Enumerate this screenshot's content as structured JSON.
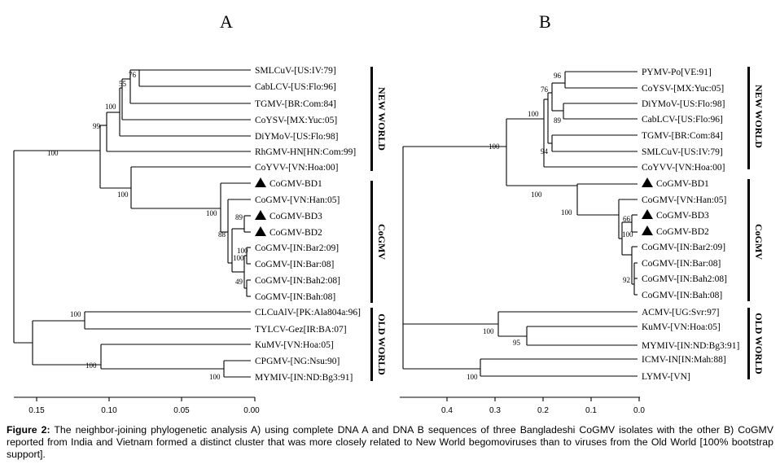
{
  "panels": {
    "a": {
      "title": "A",
      "taxa": {
        "t1": "SMLCuV-[US:IV:79]",
        "t2": "CabLCV-[US:Flo:96]",
        "t3": "TGMV-[BR:Com:84]",
        "t4": "CoYSV-[MX:Yuc:05]",
        "t5": "DiYMoV-[US:Flo:98]",
        "t6": "RhGMV-HN[HN:Com:99]",
        "t7": "CoYVV-[VN:Hoa:00]",
        "t8": "CoGMV-BD1",
        "t9": "CoGMV-[VN:Han:05]",
        "t10": "CoGMV-BD3",
        "t11": "CoGMV-BD2",
        "t12": "CoGMV-[IN:Bar2:09]",
        "t13": "CoGMV-[IN:Bar:08]",
        "t14": "CoGMV-[IN:Bah2:08]",
        "t15": "CoGMV-[IN:Bah:08]",
        "t16": "CLCuAlV-[PK:Ala804a:96]",
        "t17": "TYLCV-Gez[IR:BA:07]",
        "t18": "KuMV-[VN:Hoa:05]",
        "t19": "CPGMV-[NG:Nsu:90]",
        "t20": "MYMIV-[IN:ND:Bg3:91]"
      },
      "bootstrap": {
        "b1": "76",
        "b2": "55",
        "b3": "100",
        "b4": "99",
        "b5": "100",
        "b6": "100",
        "b7": "100",
        "b8": "89",
        "b9": "88",
        "b10": "100",
        "b11": "100",
        "b12": "49",
        "b13": "100",
        "b14": "100",
        "b15": "100"
      },
      "groups": {
        "g1": "NEW WORLD",
        "g2": "CoGMV",
        "g3": "OLD WORLD"
      },
      "scale": {
        "s1": "0.15",
        "s2": "0.10",
        "s3": "0.05",
        "s4": "0.00"
      }
    },
    "b": {
      "title": "B",
      "taxa": {
        "t1": "PYMV-Po[VE:91]",
        "t2": "CoYSV-[MX:Yuc:05]",
        "t3": "DiYMoV-[US:Flo:98]",
        "t4": "CabLCV-[US:Flo:96]",
        "t5": "TGMV-[BR:Com:84]",
        "t6": "SMLCuV-[US:IV:79]",
        "t7": "CoYVV-[VN:Hoa:00]",
        "t8": "CoGMV-BD1",
        "t9": "CoGMV-[VN:Han:05]",
        "t10": "CoGMV-BD3",
        "t11": "CoGMV-BD2",
        "t12": "CoGMV-[IN:Bar2:09]",
        "t13": "CoGMV-[IN:Bar:08]",
        "t14": "CoGMV-[IN:Bah2:08]",
        "t15": "CoGMV-[IN:Bah:08]",
        "t16": "ACMV-[UG:Svr:97]",
        "t17": "KuMV-[VN:Hoa:05]",
        "t18": "MYMIV-[IN:ND:Bg3:91]",
        "t19": "ICMV-IN[IN:Mah:88]",
        "t20": "LYMV-[VN]"
      },
      "bootstrap": {
        "b1": "96",
        "b2": "76",
        "b3": "100",
        "b4": "89",
        "b5": "94",
        "b6": "100",
        "b7": "100",
        "b8": "100",
        "b9": "66",
        "b10": "100",
        "b11": "92",
        "b12": "100",
        "b13": "95",
        "b14": "100"
      },
      "groups": {
        "g1": "NEW WORLD",
        "g2": "CoGMV",
        "g3": "OLD WORLD"
      },
      "scale": {
        "s1": "0.4",
        "s2": "0.3",
        "s3": "0.2",
        "s4": "0.1",
        "s5": "0.0"
      }
    }
  },
  "caption": {
    "label": "Figure 2:",
    "text": " The neighbor-joining phylogenetic analysis A) using complete DNA A and DNA B sequences of three Bangladeshi CoGMV isolates with the other B) CoGMV reported from India and Vietnam formed a distinct cluster that was more closely related to New World begomoviruses than to viruses from the Old World [100% bootstrap support]."
  }
}
